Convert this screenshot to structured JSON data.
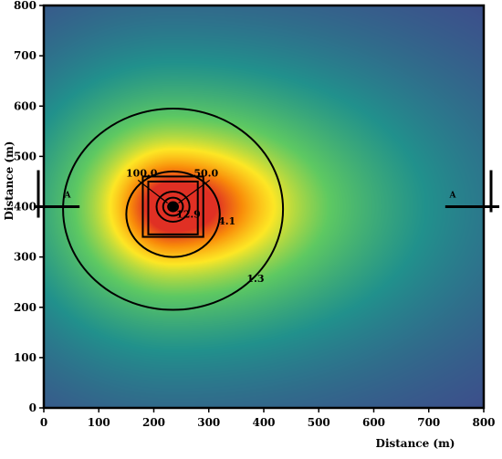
{
  "chart_data": {
    "type": "heatmap",
    "title": "",
    "xlabel": "Distance (m)",
    "ylabel": "Distance (m)",
    "xlim": [
      0,
      800
    ],
    "ylim": [
      0,
      800
    ],
    "x_ticks": [
      "0",
      "100",
      "200",
      "300",
      "400",
      "500",
      "600",
      "700",
      "800"
    ],
    "y_ticks": [
      "0",
      "100",
      "200",
      "300",
      "400",
      "500",
      "600",
      "700",
      "800"
    ],
    "grid": false,
    "colormap": [
      "#440154",
      "#3b528b",
      "#21918c",
      "#5ec962",
      "#fde725",
      "#f98c0a",
      "#e03024"
    ],
    "source": {
      "x": 235,
      "y": 400
    },
    "contours": [
      {
        "level": "1.3",
        "shape": "circle",
        "cx": 235,
        "cy": 395,
        "r": 200
      },
      {
        "level": "4.1",
        "shape": "circle",
        "cx": 235,
        "cy": 385,
        "r": 85
      },
      {
        "level": "12.9",
        "shape": "circle",
        "cx": 235,
        "cy": 400,
        "r": 30
      },
      {
        "level": "50.0",
        "shape": "circle",
        "cx": 235,
        "cy": 400,
        "r": 18
      },
      {
        "level": "100.0",
        "shape": "circle",
        "cx": 235,
        "cy": 400,
        "r": 9
      }
    ],
    "contour_labels": [
      {
        "text": "100.0",
        "x": 178,
        "y": 460
      },
      {
        "text": "50.0",
        "x": 295,
        "y": 460
      },
      {
        "text": "12.9",
        "x": 263,
        "y": 378
      },
      {
        "text": "4.1",
        "x": 333,
        "y": 365
      },
      {
        "text": "1.3",
        "x": 385,
        "y": 250
      }
    ],
    "buildings": [
      {
        "x0": 180,
        "x1": 290,
        "y0": 340,
        "y1": 460
      },
      {
        "x0": 190,
        "x1": 280,
        "y0": 345,
        "y1": 450
      }
    ],
    "section_line": {
      "label_start": "A",
      "label_end": "A",
      "y": 400,
      "left": {
        "x0": -5,
        "x1": 65
      },
      "right": {
        "x0": 730,
        "x1": 815
      }
    }
  }
}
